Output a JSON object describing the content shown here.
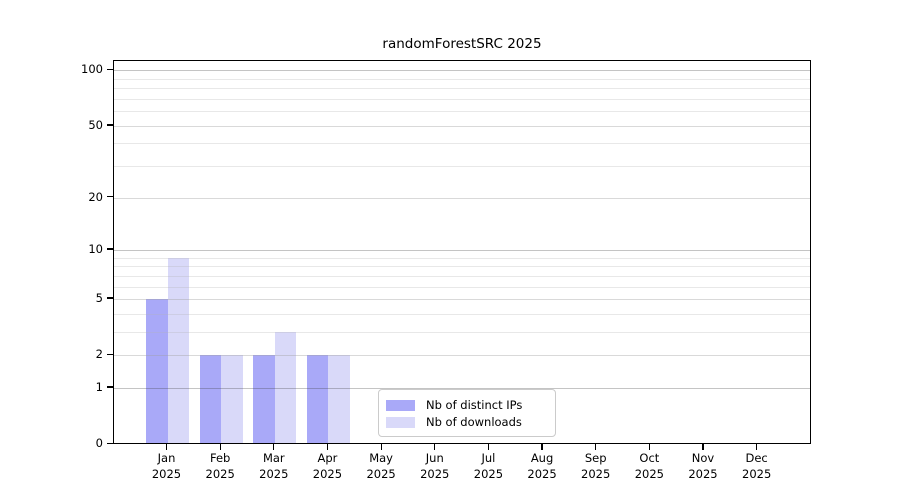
{
  "title": "randomForestSRC 2025",
  "chart_data": {
    "type": "bar",
    "title": "randomForestSRC 2025",
    "xlabel": "",
    "ylabel": "",
    "y_scale": "log1p",
    "ylim": [
      0,
      112
    ],
    "grid": "horizontal",
    "y_ticks": [
      0,
      1,
      2,
      5,
      10,
      20,
      50,
      100
    ],
    "y_gridlines_major": [
      1,
      2,
      5,
      10,
      20,
      50,
      100
    ],
    "y_gridlines_dark": [
      1,
      10,
      100
    ],
    "y_gridlines_minor": [
      3,
      4,
      6,
      7,
      8,
      9,
      30,
      40,
      60,
      70,
      80,
      90
    ],
    "categories": [
      "Jan",
      "Feb",
      "Mar",
      "Apr",
      "May",
      "Jun",
      "Jul",
      "Aug",
      "Sep",
      "Oct",
      "Nov",
      "Dec"
    ],
    "category_year": "2025",
    "series": [
      {
        "name": "Nb of distinct IPs",
        "color": "#a9a9f8",
        "values": [
          5,
          2,
          2,
          2,
          0,
          0,
          0,
          0,
          0,
          0,
          0,
          0
        ]
      },
      {
        "name": "Nb of downloads",
        "color": "#d9d9f9",
        "values": [
          9,
          2,
          3,
          2,
          0,
          0,
          0,
          0,
          0,
          0,
          0,
          0
        ]
      }
    ],
    "legend_position": "lower center (inside plot, offset right)"
  },
  "legend": {
    "item1": "Nb of distinct IPs",
    "item2": "Nb of downloads"
  }
}
